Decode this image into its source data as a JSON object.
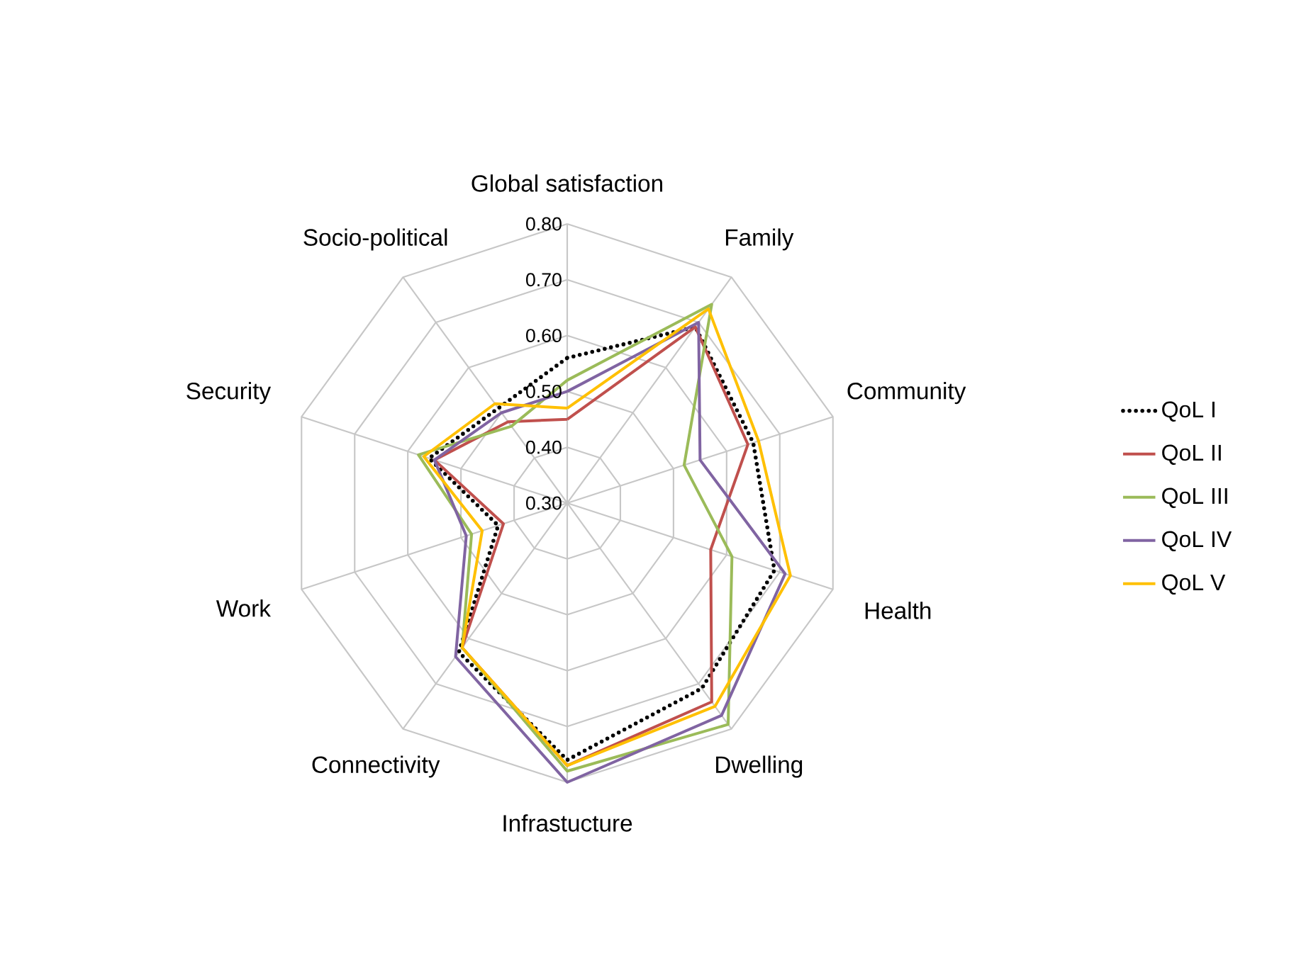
{
  "chart_data": {
    "type": "radar",
    "categories": [
      "Global satisfaction",
      "Family",
      "Community",
      "Health",
      "Dwelling",
      "Infrastucture",
      "Connectivity",
      "Work",
      "Security",
      "Socio-political"
    ],
    "ylim": [
      0.3,
      0.8
    ],
    "yticks": [
      {
        "value": 0.3,
        "label": "0.30"
      },
      {
        "value": 0.4,
        "label": "0.40"
      },
      {
        "value": 0.5,
        "label": "0.50"
      },
      {
        "value": 0.6,
        "label": "0.60"
      },
      {
        "value": 0.7,
        "label": "0.70"
      },
      {
        "value": 0.8,
        "label": "0.80"
      }
    ],
    "grid": true,
    "legend": "right",
    "marker": "none",
    "series": [
      {
        "name": "QoL I",
        "color": "#000000",
        "line_style": "dotted",
        "values": [
          0.56,
          0.69,
          0.65,
          0.69,
          0.71,
          0.76,
          0.63,
          0.43,
          0.56,
          0.51
        ]
      },
      {
        "name": "QoL II",
        "color": "#c0504d",
        "line_style": "solid",
        "values": [
          0.45,
          0.69,
          0.64,
          0.57,
          0.74,
          0.77,
          0.62,
          0.42,
          0.55,
          0.48
        ]
      },
      {
        "name": "QoL III",
        "color": "#9bbb59",
        "line_style": "solid",
        "values": [
          0.52,
          0.74,
          0.52,
          0.61,
          0.79,
          0.78,
          0.62,
          0.48,
          0.58,
          0.47
        ]
      },
      {
        "name": "QoL IV",
        "color": "#8064a2",
        "line_style": "solid",
        "values": [
          0.5,
          0.7,
          0.55,
          0.71,
          0.77,
          0.8,
          0.64,
          0.49,
          0.55,
          0.5
        ]
      },
      {
        "name": "QoL V",
        "color": "#ffc000",
        "line_style": "solid",
        "values": [
          0.47,
          0.73,
          0.66,
          0.72,
          0.75,
          0.77,
          0.62,
          0.46,
          0.57,
          0.52
        ]
      }
    ]
  }
}
